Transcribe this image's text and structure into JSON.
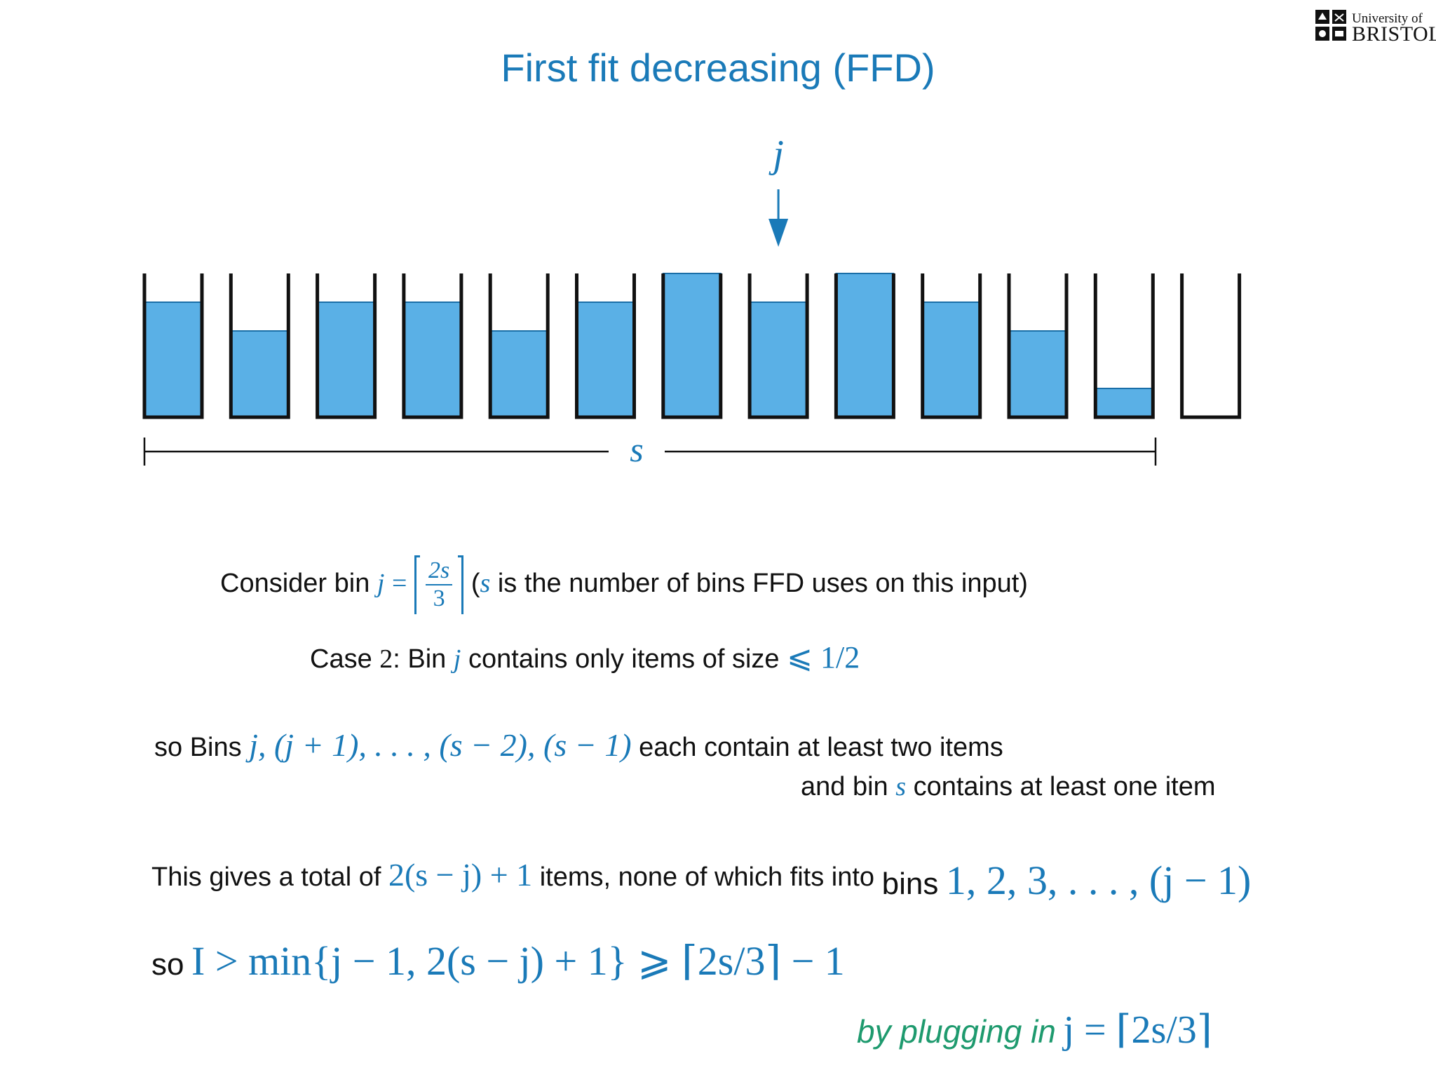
{
  "title": "First fit decreasing (FFD)",
  "logo": {
    "line1": "University of",
    "line2": "BRISTOL"
  },
  "diagram": {
    "pointer_label": "j",
    "span_label": "s",
    "bin_fill_levels": [
      0.8,
      0.6,
      0.8,
      0.8,
      0.6,
      0.8,
      1.0,
      0.8,
      1.0,
      0.8,
      0.6,
      0.2,
      0.0
    ],
    "pointer_bin_index": 8,
    "fill_color": "#5ab0e6",
    "accent_color": "#1a7ab8"
  },
  "consider": {
    "prefix": "Consider bin",
    "var": "j",
    "eq": "=",
    "frac_num": "2s",
    "frac_den": "3",
    "paren_open": "(",
    "paren_var": "s",
    "suffix": "is the number of bins FFD uses on this input)"
  },
  "case2": {
    "prefix": "Case",
    "num": "2",
    "colon": ": Bin",
    "var": "j",
    "mid": "contains only items of size",
    "math": "⩽ 1/2"
  },
  "bins_line": {
    "prefix": "so Bins",
    "math": "j, (j + 1), . . . , (s − 2), (s − 1)",
    "suffix": "each contain at least two items"
  },
  "bin_s_line": {
    "prefix": "and bin",
    "var": "s",
    "suffix": "contains at least one item"
  },
  "total_line": {
    "prefix": "This gives a total of",
    "math": "2(s − j) + 1",
    "mid": "items, none of which fits into",
    "bins_word": "bins",
    "bins_math": "1, 2, 3, . . . , (j − 1)"
  },
  "ineq_line": {
    "prefix": "so",
    "math": "I > min{j − 1, 2(s − j) + 1} ⩾ ⌈2s/3⌉ − 1"
  },
  "plug_line": {
    "text": "by plugging in",
    "math": "j = ⌈2s/3⌉"
  }
}
